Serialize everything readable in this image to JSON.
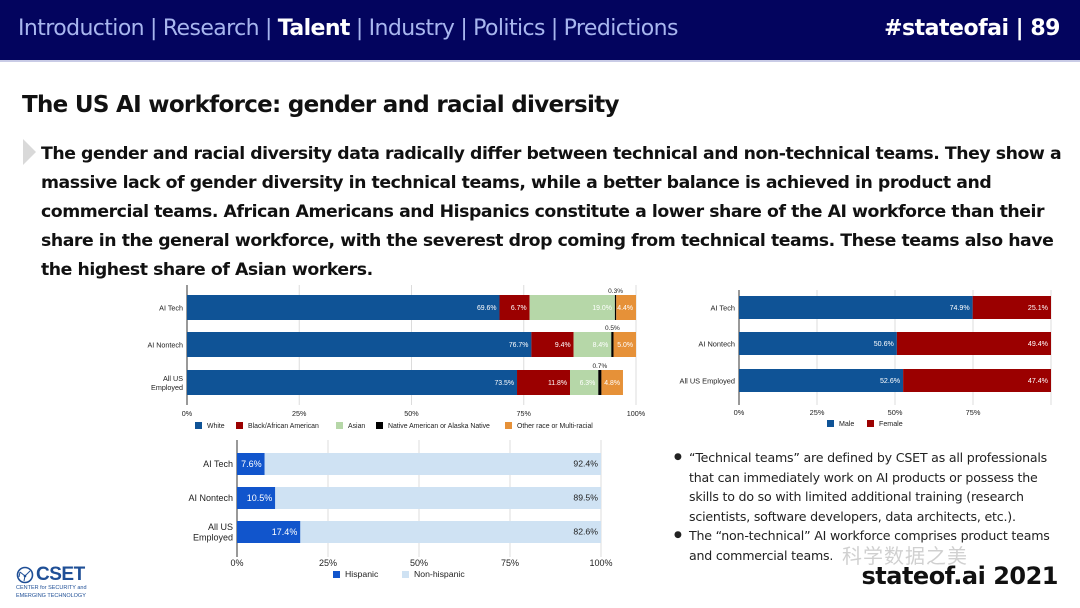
{
  "header": {
    "nav": [
      {
        "label": "Introduction",
        "active": false
      },
      {
        "label": "Research",
        "active": false
      },
      {
        "label": "Talent",
        "active": true
      },
      {
        "label": "Industry",
        "active": false
      },
      {
        "label": "Politics",
        "active": false
      },
      {
        "label": "Predictions",
        "active": false
      }
    ],
    "separator": "|",
    "page_tag": "#stateofai | 89"
  },
  "slide": {
    "title": "The US AI workforce: gender and racial diversity",
    "lead": "The gender and racial diversity data radically differ between technical and non-technical teams. They show a massive lack of gender diversity in technical teams, while a better balance is achieved in product and commercial teams. African Americans and Hispanics constitute a lower share of the AI workforce than their share in the general workforce, with the severest drop coming from technical teams. These teams also have the highest share of Asian workers.",
    "notes": [
      "“Technical teams” are defined by CSET as all professionals that can immediately work on AI products or possess the skills to do so with limited additional training (research scientists, software developers, data architects, etc.).",
      "The “non-technical” AI workforce comprises product teams and commercial teams."
    ],
    "footer_brand": "stateof.ai 2021",
    "logo": {
      "name": "CSET",
      "line1": "CENTER for SECURITY and",
      "line2": "EMERGING TECHNOLOGY"
    },
    "watermark": "科学数据之美"
  },
  "chart_data": [
    {
      "id": "race",
      "type": "bar",
      "stacked": true,
      "orientation": "horizontal",
      "title": "",
      "categories": [
        "AI Tech",
        "AI Nontech",
        "All US Employed"
      ],
      "category_display": [
        [
          "AI Tech"
        ],
        [
          "AI Nontech"
        ],
        [
          "All US",
          "Employed"
        ]
      ],
      "series": [
        {
          "name": "White",
          "color": "#0f5396",
          "values": [
            69.6,
            76.7,
            73.5
          ],
          "labels": [
            "69.6%",
            "76.7%",
            "73.5%"
          ]
        },
        {
          "name": "Black/African American",
          "color": "#9b0000",
          "values": [
            6.7,
            9.4,
            11.8
          ],
          "labels": [
            "6.7%",
            "9.4%",
            "11.8%"
          ]
        },
        {
          "name": "Asian",
          "color": "#b6d7a8",
          "values": [
            19.0,
            8.4,
            6.3
          ],
          "labels": [
            "19.0%",
            "8.4%",
            "6.3%"
          ]
        },
        {
          "name": "Native American or Alaska Native",
          "color": "#000000",
          "values": [
            0.3,
            0.5,
            0.7
          ],
          "labels": [
            "0.3%",
            "0.5%",
            "0.7%"
          ]
        },
        {
          "name": "Other race or Multi-racial",
          "color": "#e69138",
          "values": [
            4.4,
            5.0,
            4.8
          ],
          "labels": [
            "4.4%",
            "5.0%",
            "4.8%"
          ]
        }
      ],
      "xlim": [
        0,
        100
      ],
      "xticks": [
        "0%",
        "25%",
        "50%",
        "75%",
        "100%"
      ],
      "grid": true,
      "legend": "bottom"
    },
    {
      "id": "gender",
      "type": "bar",
      "stacked": true,
      "orientation": "horizontal",
      "title": "",
      "categories": [
        "AI Tech",
        "AI Nontech",
        "All US Employed"
      ],
      "category_display": [
        [
          "AI Tech"
        ],
        [
          "AI Nontech"
        ],
        [
          "All US Employed"
        ]
      ],
      "series": [
        {
          "name": "Male",
          "color": "#0f5396",
          "values": [
            74.9,
            50.6,
            52.6
          ],
          "labels": [
            "74.9%",
            "50.6%",
            "52.6%"
          ]
        },
        {
          "name": "Female",
          "color": "#9b0000",
          "values": [
            25.1,
            49.4,
            47.4
          ],
          "labels": [
            "25.1%",
            "49.4%",
            "47.4%"
          ]
        }
      ],
      "xlim": [
        0,
        100
      ],
      "xticks": [
        "0%",
        "25%",
        "50%",
        "75%"
      ],
      "grid": true,
      "legend": "bottom"
    },
    {
      "id": "ethnicity",
      "type": "bar",
      "stacked": true,
      "orientation": "horizontal",
      "title": "",
      "categories": [
        "AI Tech",
        "AI Nontech",
        "All US Employed"
      ],
      "category_display": [
        [
          "AI Tech"
        ],
        [
          "AI Nontech"
        ],
        [
          "All US",
          "Employed"
        ]
      ],
      "series": [
        {
          "name": "Hispanic",
          "color": "#1155cc",
          "values": [
            7.6,
            10.5,
            17.4
          ],
          "labels": [
            "7.6%",
            "10.5%",
            "17.4%"
          ]
        },
        {
          "name": "Non-hispanic",
          "color": "#cfe2f3",
          "values": [
            92.4,
            89.5,
            82.6
          ],
          "labels": [
            "92.4%",
            "89.5%",
            "82.6%"
          ]
        }
      ],
      "xlim": [
        0,
        100
      ],
      "xticks": [
        "0%",
        "25%",
        "50%",
        "75%",
        "100%"
      ],
      "grid": true,
      "legend": "bottom"
    }
  ]
}
